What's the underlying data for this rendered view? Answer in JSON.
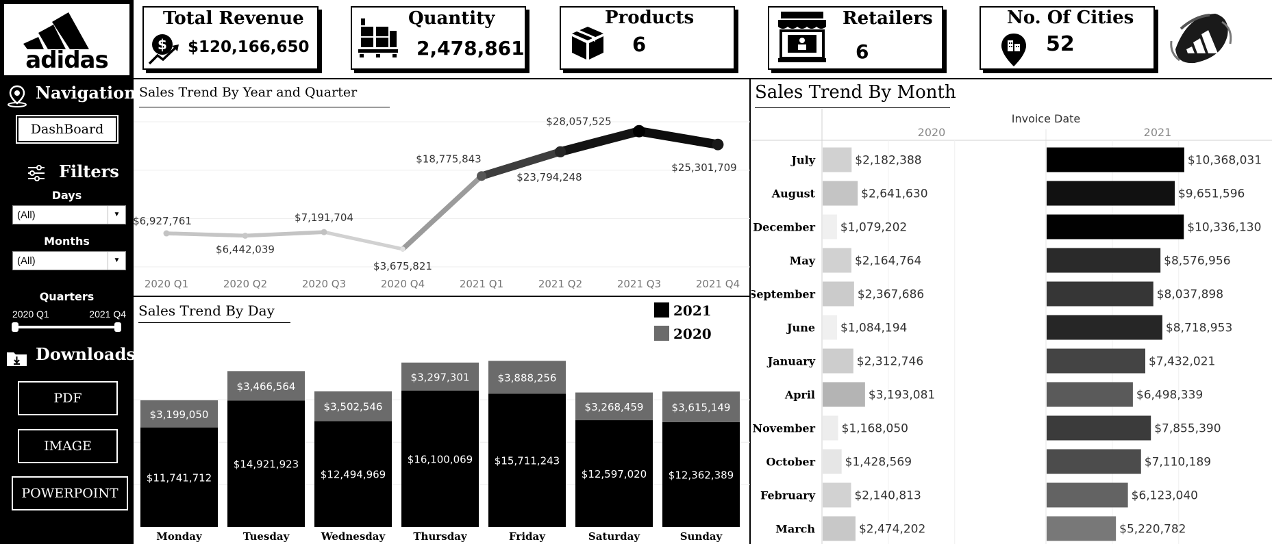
{
  "brand": {
    "logo_text": "adidas"
  },
  "navigation": {
    "heading": "Navigation",
    "dashboard_button": "DashBoard"
  },
  "filters": {
    "heading": "Filters",
    "days_label": "Days",
    "days_value": "(All)",
    "months_label": "Months",
    "months_value": "(All)",
    "quarters_label": "Quarters",
    "quarters_start": "2020 Q1",
    "quarters_end": "2021 Q4"
  },
  "downloads": {
    "heading": "Downloads",
    "pdf_button": "PDF",
    "image_button": "IMAGE",
    "powerpoint_button": "POWERPOINT"
  },
  "kpis": {
    "revenue": {
      "label": "Total Revenue",
      "value": "$120,166,650",
      "icon": "dollar-growth-icon"
    },
    "quantity": {
      "label": "Quantity",
      "value": "2,478,861",
      "icon": "boxes-pallet-icon"
    },
    "products": {
      "label": "Products",
      "value": "6",
      "icon": "package-icon"
    },
    "retailers": {
      "label": "Retailers",
      "value": "6",
      "icon": "storefront-icon"
    },
    "cities": {
      "label": "No. Of Cities",
      "value": "52",
      "icon": "city-pin-icon"
    }
  },
  "colors": {
    "sidebar_bg": "#000000",
    "bar_2021": "#000000",
    "bar_2020": "#6b6b6b"
  },
  "chart_data": [
    {
      "id": "quarter_trend",
      "type": "line",
      "title": "Sales Trend By Year and Quarter",
      "categories": [
        "2020 Q1",
        "2020 Q2",
        "2020 Q3",
        "2020 Q4",
        "2021 Q1",
        "2021 Q2",
        "2021 Q3",
        "2021 Q4"
      ],
      "values": [
        6927761,
        6442039,
        7191704,
        3675821,
        18775843,
        23794248,
        28057525,
        25301709
      ],
      "labels": [
        "$6,927,761",
        "$6,442,039",
        "$7,191,704",
        "$3,675,821",
        "$18,775,843",
        "$23,794,248",
        "$28,057,525",
        "$25,301,709"
      ],
      "ylim": [
        0,
        30000000
      ],
      "grid": true
    },
    {
      "id": "day_trend",
      "type": "bar",
      "stacked": true,
      "title": "Sales Trend By Day",
      "categories": [
        "Monday",
        "Tuesday",
        "Wednesday",
        "Thursday",
        "Friday",
        "Saturday",
        "Sunday"
      ],
      "series": [
        {
          "name": "2021",
          "values": [
            11741712,
            14921923,
            12494969,
            16100069,
            15711243,
            12597020,
            12362389
          ],
          "labels": [
            "$11,741,712",
            "$14,921,923",
            "$12,494,969",
            "$16,100,069",
            "$15,711,243",
            "$12,597,020",
            "$12,362,389"
          ]
        },
        {
          "name": "2020",
          "values": [
            3199050,
            3466564,
            3502546,
            3297301,
            3888256,
            3268459,
            3615149
          ],
          "labels": [
            "$3,199,050",
            "$3,466,564",
            "$3,502,546",
            "$3,297,301",
            "$3,888,256",
            "$3,268,459",
            "$3,615,149"
          ]
        }
      ],
      "legend": "top-right",
      "ylim": [
        0,
        21000000
      ],
      "grid": true
    },
    {
      "id": "month_trend",
      "type": "bar",
      "orientation": "horizontal",
      "title": "Sales Trend By Month",
      "column_header": "Invoice Date",
      "categories": [
        "July",
        "August",
        "December",
        "May",
        "September",
        "June",
        "January",
        "April",
        "November",
        "October",
        "February",
        "March"
      ],
      "series": [
        {
          "name": "2020",
          "values": [
            2182388,
            2641630,
            1079202,
            2164764,
            2367686,
            1084194,
            2312746,
            3193081,
            1168050,
            1428569,
            2140813,
            2474202
          ],
          "labels": [
            "$2,182,388",
            "$2,641,630",
            "$1,079,202",
            "$2,164,764",
            "$2,367,686",
            "$1,084,194",
            "$2,312,746",
            "$3,193,081",
            "$1,168,050",
            "$1,428,569",
            "$2,140,813",
            "$2,474,202"
          ]
        },
        {
          "name": "2021",
          "values": [
            10368031,
            9651596,
            10336130,
            8576956,
            8037898,
            8718953,
            7432021,
            6498339,
            7855390,
            7110189,
            6123040,
            5220782
          ],
          "labels": [
            "$10,368,031",
            "$9,651,596",
            "$10,336,130",
            "$8,576,956",
            "$8,037,898",
            "$8,718,953",
            "$7,432,021",
            "$6,498,339",
            "$7,855,390",
            "$7,110,189",
            "$6,123,040",
            "$5,220,782"
          ]
        }
      ],
      "xlim": [
        0,
        16000000
      ],
      "grid": true
    }
  ]
}
